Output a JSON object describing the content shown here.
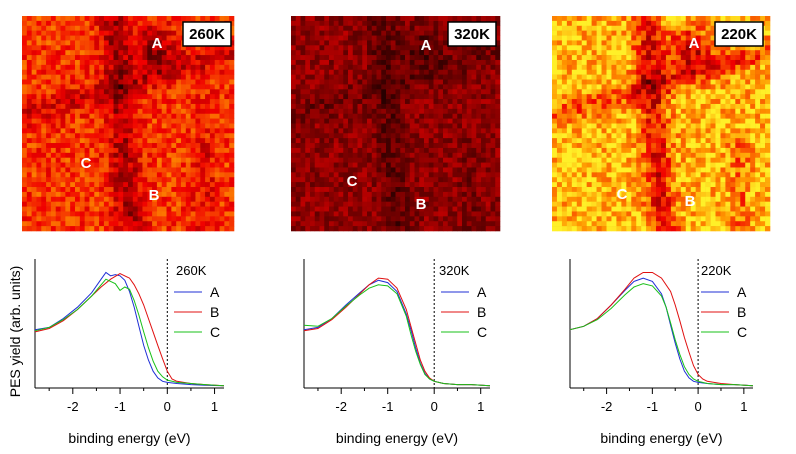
{
  "figure": {
    "y_axis_label": "PES yield (arb. units)",
    "colors": {
      "A": "#1f2fd6",
      "B": "#e01010",
      "C": "#18c018",
      "axis": "#000000",
      "fermi_line": "#000000"
    }
  },
  "chart_data": [
    {
      "type": "line",
      "temperature": "260K",
      "map_labels": [
        "A",
        "B",
        "C"
      ],
      "map_brightness": 0.55,
      "xlabel": "binding energy (eV)",
      "ylabel": "PES yield (arb. units)",
      "xlim": [
        -2.8,
        1.2
      ],
      "ylim": [
        0,
        1.15
      ],
      "xticks": [
        -2,
        -1,
        0,
        1
      ],
      "xtick_labels": [
        "-2",
        "-1",
        "0",
        "1"
      ],
      "fermi_level": 0,
      "legend": [
        "A",
        "B",
        "C"
      ],
      "series": [
        {
          "name": "A",
          "x": [
            -2.8,
            -2.5,
            -2.2,
            -1.9,
            -1.6,
            -1.4,
            -1.3,
            -1.2,
            -1.1,
            -1.0,
            -0.9,
            -0.8,
            -0.7,
            -0.6,
            -0.5,
            -0.4,
            -0.3,
            -0.2,
            -0.1,
            0,
            0.2,
            0.5,
            0.8,
            1.2
          ],
          "y": [
            0.52,
            0.54,
            0.62,
            0.72,
            0.85,
            0.97,
            1.03,
            1.0,
            1.01,
            1.0,
            0.96,
            0.86,
            0.72,
            0.55,
            0.38,
            0.25,
            0.15,
            0.09,
            0.06,
            0.05,
            0.04,
            0.03,
            0.025,
            0.02
          ]
        },
        {
          "name": "B",
          "x": [
            -2.8,
            -2.5,
            -2.2,
            -1.9,
            -1.6,
            -1.4,
            -1.2,
            -1.0,
            -0.8,
            -0.7,
            -0.6,
            -0.5,
            -0.4,
            -0.3,
            -0.2,
            -0.1,
            0,
            0.1,
            0.2,
            0.5,
            0.8,
            1.2
          ],
          "y": [
            0.5,
            0.53,
            0.6,
            0.7,
            0.82,
            0.9,
            0.97,
            1.02,
            0.98,
            0.92,
            0.84,
            0.74,
            0.62,
            0.5,
            0.38,
            0.26,
            0.15,
            0.08,
            0.06,
            0.04,
            0.03,
            0.02
          ]
        },
        {
          "name": "C",
          "x": [
            -2.8,
            -2.5,
            -2.2,
            -1.9,
            -1.6,
            -1.4,
            -1.3,
            -1.2,
            -1.1,
            -1.0,
            -0.9,
            -0.8,
            -0.7,
            -0.6,
            -0.5,
            -0.4,
            -0.3,
            -0.2,
            -0.1,
            0,
            0.2,
            0.5,
            0.8,
            1.2
          ],
          "y": [
            0.51,
            0.54,
            0.61,
            0.7,
            0.82,
            0.92,
            0.97,
            0.95,
            0.93,
            0.87,
            0.9,
            0.88,
            0.78,
            0.65,
            0.5,
            0.36,
            0.24,
            0.15,
            0.1,
            0.07,
            0.05,
            0.04,
            0.03,
            0.02
          ]
        }
      ]
    },
    {
      "type": "line",
      "temperature": "320K",
      "map_labels": [
        "A",
        "B",
        "C"
      ],
      "map_brightness": 0.22,
      "xlabel": "binding energy (eV)",
      "ylabel": "",
      "xlim": [
        -2.8,
        1.2
      ],
      "ylim": [
        0,
        1.15
      ],
      "xticks": [
        -2,
        -1,
        0,
        1
      ],
      "xtick_labels": [
        "-2",
        "-1",
        "0",
        "1"
      ],
      "fermi_level": 0,
      "legend": [
        "A",
        "B",
        "C"
      ],
      "series": [
        {
          "name": "A",
          "x": [
            -2.8,
            -2.5,
            -2.2,
            -1.9,
            -1.6,
            -1.4,
            -1.2,
            -1.0,
            -0.8,
            -0.6,
            -0.5,
            -0.4,
            -0.3,
            -0.2,
            -0.1,
            0,
            0.2,
            0.5,
            0.8,
            1.2
          ],
          "y": [
            0.52,
            0.54,
            0.62,
            0.74,
            0.85,
            0.92,
            0.96,
            0.94,
            0.86,
            0.66,
            0.52,
            0.36,
            0.22,
            0.13,
            0.08,
            0.06,
            0.04,
            0.03,
            0.03,
            0.02
          ]
        },
        {
          "name": "B",
          "x": [
            -2.8,
            -2.5,
            -2.2,
            -1.9,
            -1.6,
            -1.4,
            -1.2,
            -1.0,
            -0.8,
            -0.6,
            -0.5,
            -0.4,
            -0.3,
            -0.2,
            -0.1,
            0,
            0.2,
            0.5,
            0.8,
            1.2
          ],
          "y": [
            0.51,
            0.53,
            0.61,
            0.72,
            0.84,
            0.92,
            0.98,
            0.97,
            0.89,
            0.7,
            0.55,
            0.4,
            0.25,
            0.15,
            0.09,
            0.06,
            0.04,
            0.03,
            0.03,
            0.02
          ]
        },
        {
          "name": "C",
          "x": [
            -2.8,
            -2.5,
            -2.2,
            -1.9,
            -1.6,
            -1.4,
            -1.2,
            -1.0,
            -0.8,
            -0.6,
            -0.5,
            -0.4,
            -0.3,
            -0.2,
            -0.1,
            0,
            0.2,
            0.5,
            0.8,
            1.2
          ],
          "y": [
            0.56,
            0.55,
            0.62,
            0.73,
            0.83,
            0.89,
            0.92,
            0.91,
            0.84,
            0.64,
            0.48,
            0.33,
            0.21,
            0.12,
            0.08,
            0.06,
            0.04,
            0.03,
            0.03,
            0.02
          ]
        }
      ]
    },
    {
      "type": "line",
      "temperature": "220K",
      "map_labels": [
        "A",
        "B",
        "C"
      ],
      "map_brightness": 0.85,
      "xlabel": "binding energy (eV)",
      "ylabel": "",
      "xlim": [
        -2.8,
        1.2
      ],
      "ylim": [
        0,
        1.15
      ],
      "xticks": [
        -2,
        -1,
        0,
        1
      ],
      "xtick_labels": [
        "-2",
        "-1",
        "0",
        "1"
      ],
      "fermi_level": 0,
      "legend": [
        "A",
        "B",
        "C"
      ],
      "series": [
        {
          "name": "A",
          "x": [
            -2.8,
            -2.5,
            -2.2,
            -1.9,
            -1.6,
            -1.4,
            -1.2,
            -1.0,
            -0.8,
            -0.7,
            -0.6,
            -0.5,
            -0.4,
            -0.3,
            -0.2,
            -0.1,
            0,
            0.2,
            0.5,
            0.8,
            1.2
          ],
          "y": [
            0.52,
            0.55,
            0.62,
            0.74,
            0.87,
            0.95,
            0.98,
            0.95,
            0.84,
            0.72,
            0.56,
            0.4,
            0.26,
            0.15,
            0.09,
            0.06,
            0.05,
            0.04,
            0.03,
            0.03,
            0.02
          ]
        },
        {
          "name": "B",
          "x": [
            -2.8,
            -2.5,
            -2.2,
            -1.9,
            -1.6,
            -1.4,
            -1.2,
            -1.0,
            -0.8,
            -0.6,
            -0.5,
            -0.4,
            -0.3,
            -0.2,
            -0.1,
            0,
            0.1,
            0.2,
            0.5,
            0.8,
            1.2
          ],
          "y": [
            0.52,
            0.55,
            0.62,
            0.74,
            0.88,
            0.98,
            1.03,
            1.03,
            0.98,
            0.86,
            0.74,
            0.6,
            0.45,
            0.32,
            0.2,
            0.12,
            0.08,
            0.06,
            0.04,
            0.03,
            0.02
          ]
        },
        {
          "name": "C",
          "x": [
            -2.8,
            -2.5,
            -2.2,
            -1.9,
            -1.6,
            -1.4,
            -1.2,
            -1.0,
            -0.8,
            -0.7,
            -0.6,
            -0.5,
            -0.4,
            -0.3,
            -0.2,
            -0.1,
            0,
            0.2,
            0.5,
            0.8,
            1.2
          ],
          "y": [
            0.52,
            0.55,
            0.61,
            0.71,
            0.83,
            0.9,
            0.93,
            0.91,
            0.82,
            0.72,
            0.58,
            0.43,
            0.3,
            0.19,
            0.12,
            0.08,
            0.06,
            0.04,
            0.03,
            0.03,
            0.02
          ]
        }
      ]
    }
  ]
}
